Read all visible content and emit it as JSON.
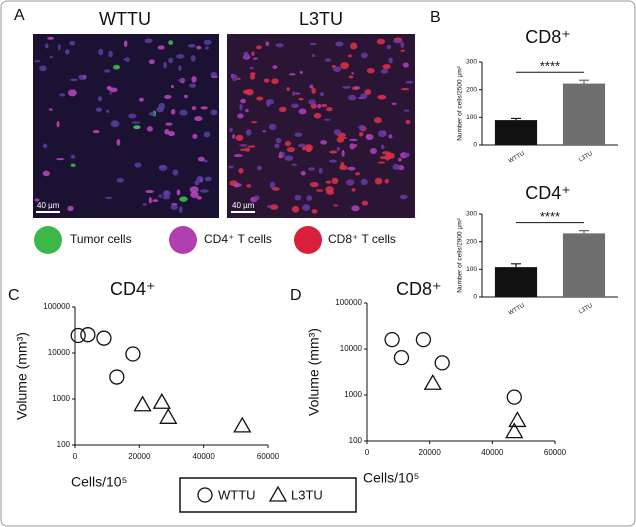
{
  "panel_labels": [
    "A",
    "B",
    "C",
    "D"
  ],
  "images": [
    {
      "title": "WTTU",
      "scale_bar": "40 µm"
    },
    {
      "title": "L3TU",
      "scale_bar": "40 µm"
    }
  ],
  "image_legend": [
    "Tumor cells",
    "CD4⁺ T cells",
    "CD8⁺ T cells"
  ],
  "chart_data": [
    {
      "type": "bar",
      "title": "CD8⁺",
      "y_label": "Number of cells/2500 µm²",
      "categories": [
        "WTTU",
        "L3TU"
      ],
      "values": [
        90,
        222
      ],
      "errors": [
        6,
        12
      ],
      "colors": [
        "#111111",
        "#6e6e6e"
      ],
      "significance": "****",
      "ylim": [
        0,
        300
      ],
      "yticks": [
        0,
        100,
        200,
        300
      ]
    },
    {
      "type": "bar",
      "title": "CD4⁺",
      "y_label": "Number of cells/2900 µm²",
      "categories": [
        "WTTU",
        "L3TU"
      ],
      "values": [
        108,
        230
      ],
      "errors": [
        12,
        10
      ],
      "colors": [
        "#111111",
        "#6e6e6e"
      ],
      "significance": "****",
      "ylim": [
        0,
        300
      ],
      "yticks": [
        0,
        100,
        200,
        300
      ]
    },
    {
      "type": "scatter",
      "title": "CD4⁺",
      "x_label": "Cells/10⁵",
      "y_label": "Volume (mm³)",
      "log_y": true,
      "xlim": [
        0,
        60000
      ],
      "xticks": [
        0,
        20000,
        40000,
        60000
      ],
      "ylim": [
        100,
        100000
      ],
      "yticks": [
        100,
        1000,
        10000,
        100000
      ],
      "series": [
        {
          "name": "WTTU",
          "marker": "circle",
          "x": [
            1000,
            4000,
            9000,
            18000,
            13000
          ],
          "values": [
            24000,
            25000,
            21000,
            9500,
            3000
          ]
        },
        {
          "name": "L3TU",
          "marker": "triangle",
          "x": [
            21000,
            27000,
            29000,
            52000
          ],
          "values": [
            750,
            850,
            400,
            260
          ]
        }
      ]
    },
    {
      "type": "scatter",
      "title": "CD8⁺",
      "x_label": "Cells/10⁵",
      "y_label": "Volume (mm³)",
      "log_y": true,
      "xlim": [
        0,
        60000
      ],
      "xticks": [
        0,
        20000,
        40000,
        60000
      ],
      "ylim": [
        100,
        100000
      ],
      "yticks": [
        100,
        1000,
        10000,
        100000
      ],
      "series": [
        {
          "name": "WTTU",
          "marker": "circle",
          "x": [
            8000,
            11000,
            18000,
            24000,
            47000
          ],
          "values": [
            16000,
            6500,
            16000,
            5000,
            900
          ]
        },
        {
          "name": "L3TU",
          "marker": "triangle",
          "x": [
            21000,
            48000,
            47000
          ],
          "values": [
            1800,
            280,
            160
          ]
        }
      ]
    }
  ]
}
